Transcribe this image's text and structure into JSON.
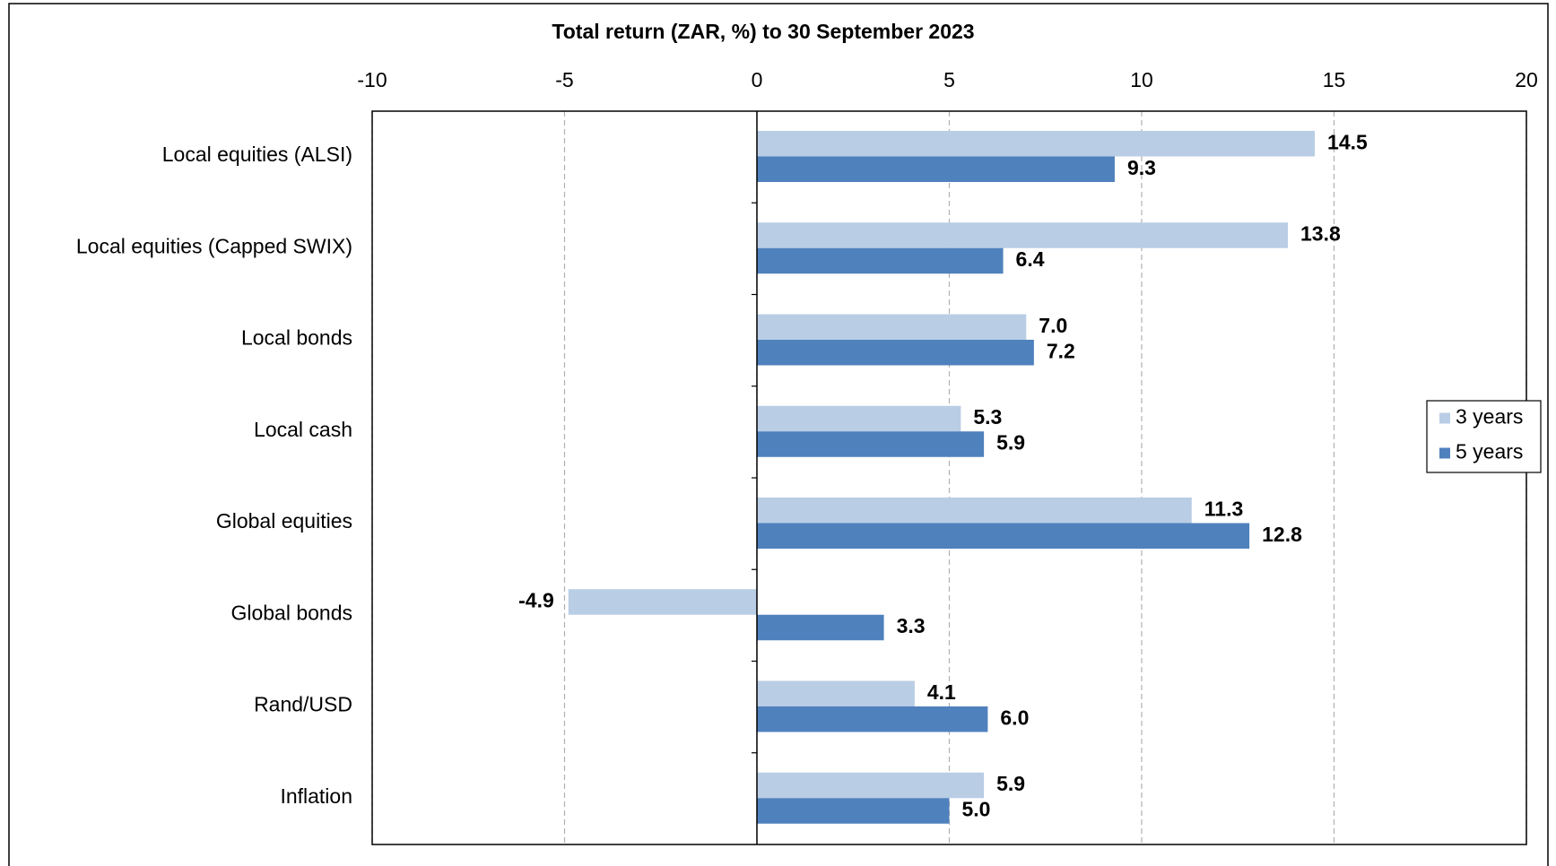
{
  "chart_data": {
    "type": "bar",
    "orientation": "horizontal",
    "title": "Total return (ZAR, %) to 30 September 2023",
    "categories": [
      "Local equities (ALSI)",
      "Local equities (Capped SWIX)",
      "Local bonds",
      "Local cash",
      "Global equities",
      "Global bonds",
      "Rand/USD",
      "Inflation"
    ],
    "series": [
      {
        "name": "3 years",
        "color": "#b9cde5",
        "values": [
          14.5,
          13.8,
          7.0,
          5.3,
          11.3,
          -4.9,
          4.1,
          5.9
        ],
        "value_labels": [
          "14.5",
          "13.8",
          "7.0",
          "5.3",
          "11.3",
          "-4.9",
          "4.1",
          "5.9"
        ]
      },
      {
        "name": "5 years",
        "color": "#4f81bd",
        "values": [
          9.3,
          6.4,
          7.2,
          5.9,
          12.8,
          3.3,
          6.0,
          5.0
        ],
        "value_labels": [
          "9.3",
          "6.4",
          "7.2",
          "5.9",
          "12.8",
          "3.3",
          "6.0",
          "5.0"
        ]
      }
    ],
    "xlim": [
      -10,
      20
    ],
    "xticks": [
      -10,
      -5,
      0,
      5,
      10,
      15,
      20
    ],
    "grid": true,
    "legend": "right"
  }
}
